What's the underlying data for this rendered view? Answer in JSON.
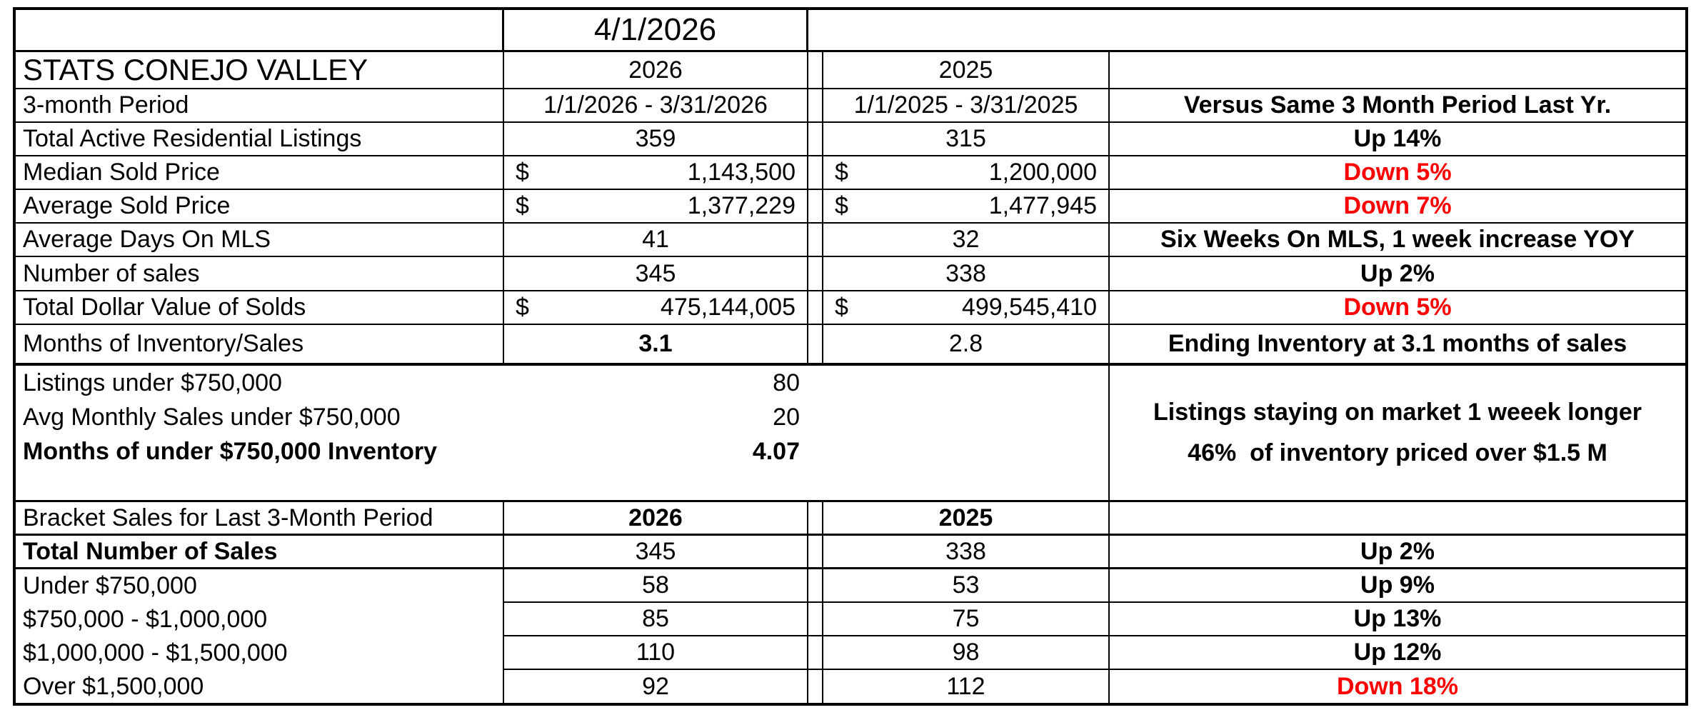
{
  "report": {
    "as_of_date": "4/1/2026",
    "title": "STATS CONEJO VALLEY",
    "year_current": "2026",
    "year_prior": "2025",
    "period": {
      "label": "3-month Period",
      "current": "1/1/2026 - 3/31/2026",
      "prior": "1/1/2025 - 3/31/2025",
      "comment": "Versus Same 3 Month Period Last Yr."
    },
    "stats": [
      {
        "label": "Total Active Residential Listings",
        "current": "359",
        "prior": "315",
        "comment": "Up 14%"
      },
      {
        "label": "Median Sold Price",
        "currency": "$",
        "current": "1,143,500",
        "prior": "1,200,000",
        "comment": "Down 5%"
      },
      {
        "label": "Average Sold Price",
        "currency": "$",
        "current": "1,377,229",
        "prior": "1,477,945",
        "comment": "Down 7%"
      },
      {
        "label": "Average Days On MLS",
        "current": "41",
        "prior": "32",
        "comment": "Six Weeks On MLS, 1 week increase YOY"
      },
      {
        "label": "Number of sales",
        "current": "345",
        "prior": "338",
        "comment": "Up 2%"
      },
      {
        "label": "Total Dollar Value of Solds",
        "currency": "$",
        "current": "475,144,005",
        "prior": "499,545,410",
        "comment": "Down 5%"
      },
      {
        "label": "Months of Inventory/Sales",
        "current": "3.1",
        "prior": "2.8",
        "comment": "Ending Inventory at 3.1 months of sales"
      }
    ],
    "inventory": {
      "rows": [
        {
          "label": "Listings under $750,000",
          "value": "80"
        },
        {
          "label": "Avg Monthly Sales under $750,000",
          "value": "20"
        },
        {
          "label": "Months of under $750,000 Inventory",
          "value": "4.07"
        }
      ],
      "note_line1": "Listings staying on market 1 weeek longer",
      "note_line2": "46%  of inventory priced over $1.5 M"
    },
    "bracket": {
      "label": "Bracket Sales for Last 3-Month Period",
      "year_current": "2026",
      "year_prior": "2025",
      "rows": [
        {
          "label": "Total Number of Sales",
          "current": "345",
          "prior": "338",
          "comment": "Up 2%"
        },
        {
          "label": "Under $750,000",
          "current": "58",
          "prior": "53",
          "comment": "Up 9%"
        },
        {
          "label": "$750,000 - $1,000,000",
          "current": "85",
          "prior": "75",
          "comment": "Up 13%"
        },
        {
          "label": "$1,000,000 - $1,500,000",
          "current": "110",
          "prior": "98",
          "comment": "Up 12%"
        },
        {
          "label": "Over $1,500,000",
          "current": "92",
          "prior": "112",
          "comment": "Down 18%"
        }
      ]
    }
  },
  "colors": {
    "negative": "#FF0000",
    "text": "#000000",
    "grid_border": "#000000"
  }
}
